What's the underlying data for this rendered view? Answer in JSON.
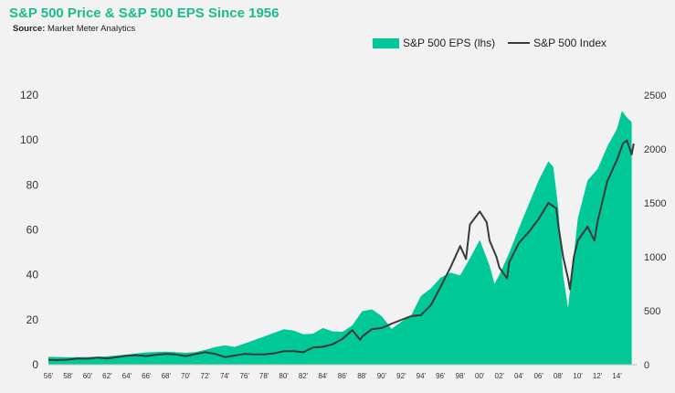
{
  "chart": {
    "title": "S&P 500 Price & S&P 500 EPS Since 1956",
    "source_label": "Source:",
    "source_text": "Market Meter Analytics"
  },
  "chart_data": {
    "type": "area",
    "title": "S&P 500 Price & S&P 500 EPS Since 1956",
    "subtitle": "Source: Market Meter Analytics",
    "x_tick_labels": [
      "56'",
      "58'",
      "60'",
      "62'",
      "64'",
      "66'",
      "68'",
      "70'",
      "72'",
      "74'",
      "76'",
      "78'",
      "80'",
      "82'",
      "84'",
      "86'",
      "88'",
      "90'",
      "92'",
      "94'",
      "96'",
      "98'",
      "00'",
      "02'",
      "04'",
      "06'",
      "08'",
      "10'",
      "12'",
      "14'"
    ],
    "left_axis": {
      "ticks": [
        0,
        20,
        40,
        60,
        80,
        100,
        120
      ],
      "ylim": [
        0,
        120
      ]
    },
    "right_axis": {
      "ticks": [
        0,
        500,
        1000,
        1500,
        2000,
        2500
      ],
      "ylim": [
        0,
        2500
      ]
    },
    "xlim": [
      1956,
      2016
    ],
    "grid": false,
    "legend_position": "top-right",
    "colors": {
      "eps_fill": "#00c896",
      "index_line": "#3a3a3a",
      "title": "#1bbc8f"
    },
    "series": [
      {
        "name": "S&P 500 EPS (lhs)",
        "type": "area",
        "axis": "left",
        "x": [
          1956,
          1958,
          1960,
          1962,
          1964,
          1966,
          1968,
          1970,
          1971,
          1972,
          1973,
          1974,
          1975,
          1976,
          1978,
          1980,
          1981,
          1982,
          1983,
          1984,
          1985,
          1986,
          1987,
          1988,
          1989,
          1990,
          1991,
          1992,
          1993,
          1994,
          1995,
          1996,
          1997,
          1998,
          1999,
          2000,
          2001,
          2001.5,
          2002,
          2003,
          2004,
          2005,
          2006,
          2007,
          2007.5,
          2008,
          2008.5,
          2009,
          2009.5,
          2010,
          2011,
          2012,
          2013,
          2014,
          2014.5,
          2015,
          2015.5
        ],
        "values": [
          3.5,
          3.3,
          3.4,
          3.7,
          4.5,
          5.5,
          5.8,
          5.3,
          5.6,
          6.6,
          7.8,
          8.6,
          7.9,
          9.4,
          12.5,
          15.8,
          15.2,
          13.5,
          13.8,
          16.3,
          14.8,
          14.6,
          17.5,
          23.8,
          24.6,
          21.6,
          15.9,
          19.1,
          21.9,
          30.6,
          33.9,
          38.7,
          41.0,
          39.7,
          47.4,
          55.5,
          44.0,
          36.0,
          40.0,
          49.7,
          60.8,
          71.4,
          82.0,
          90.5,
          88.0,
          70.0,
          40.0,
          25.0,
          45.0,
          65.0,
          82.0,
          87.0,
          97.0,
          105.0,
          113.0,
          110.0,
          108.0
        ]
      },
      {
        "name": "S&P 500 Index",
        "type": "line",
        "axis": "right",
        "x": [
          1956,
          1957,
          1958,
          1959,
          1960,
          1961,
          1962,
          1963,
          1964,
          1965,
          1966,
          1967,
          1968,
          1969,
          1970,
          1971,
          1972,
          1973,
          1974,
          1975,
          1976,
          1977,
          1978,
          1979,
          1980,
          1981,
          1982,
          1983,
          1984,
          1985,
          1986,
          1987,
          1987.8,
          1988,
          1989,
          1990,
          1991,
          1992,
          1993,
          1994,
          1995,
          1996,
          1997,
          1998,
          1998.6,
          1999,
          2000,
          2000.7,
          2001,
          2001.7,
          2002,
          2002.8,
          2003,
          2004,
          2005,
          2006,
          2007,
          2007.8,
          2008,
          2008.5,
          2009,
          2009.2,
          2009.6,
          2010,
          2011,
          2011.7,
          2012,
          2013,
          2014,
          2014.6,
          2015,
          2015.5,
          2015.7
        ],
        "values": [
          45,
          42,
          47,
          57,
          55,
          65,
          58,
          70,
          82,
          88,
          80,
          92,
          100,
          95,
          80,
          98,
          115,
          100,
          70,
          85,
          100,
          95,
          95,
          105,
          125,
          125,
          115,
          160,
          165,
          190,
          240,
          320,
          230,
          260,
          330,
          340,
          380,
          415,
          450,
          460,
          550,
          720,
          900,
          1100,
          980,
          1300,
          1420,
          1320,
          1150,
          1000,
          900,
          800,
          950,
          1130,
          1230,
          1350,
          1500,
          1450,
          1300,
          1000,
          800,
          700,
          1000,
          1150,
          1280,
          1150,
          1320,
          1700,
          1900,
          2050,
          2080,
          1950,
          2050
        ]
      }
    ]
  }
}
